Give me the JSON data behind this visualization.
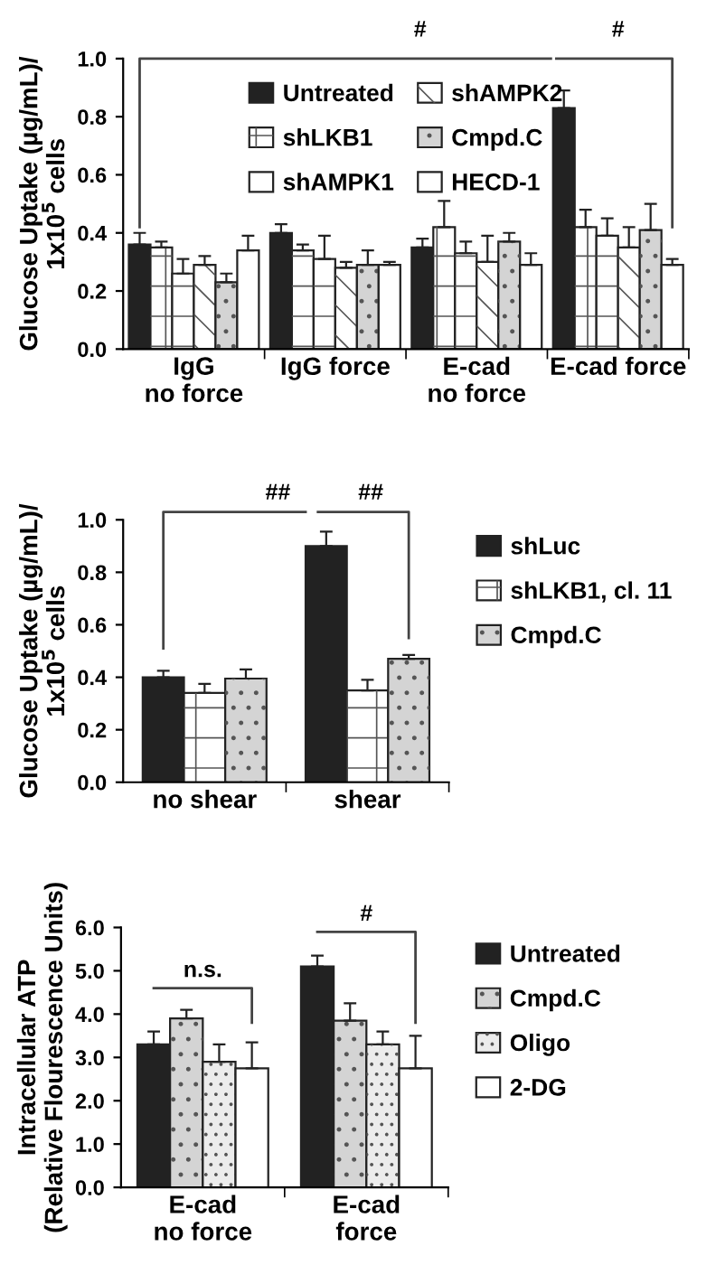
{
  "chart_data": [
    {
      "type": "bar",
      "ylabel": "Glucose Uptake (µg/mL)/\n1x10$^{5}$ cells",
      "categories": [
        "IgG\nno force",
        "IgG force",
        "E-cad\nno force",
        "E-cad force"
      ],
      "ylim": [
        0,
        1
      ],
      "yticks": [
        {
          "value": 0,
          "label": "0.0"
        },
        0.2,
        0.4,
        0.6,
        0.8,
        {
          "value": 1,
          "label": "1.0"
        }
      ],
      "legend": "top",
      "annotations": [
        "#",
        "#"
      ],
      "series": [
        {
          "name": "Untreated",
          "color": "#222222",
          "values": [
            0.36,
            0.4,
            0.35,
            0.83
          ],
          "errors": [
            [
              0.36,
              0.4
            ],
            [
              0.4,
              0.43
            ],
            [
              0.35,
              0.38
            ],
            [
              0.83,
              0.89
            ]
          ]
        },
        {
          "name": "shLKB1",
          "color": "#ffffff",
          "values": [
            0.35,
            0.34,
            0.42,
            0.42
          ],
          "errors": [
            [
              0.35,
              0.37
            ],
            [
              0.34,
              0.36
            ],
            [
              0.42,
              0.51
            ],
            [
              0.42,
              0.48
            ]
          ]
        },
        {
          "name": "shAMPK1",
          "color": "#ffffff",
          "values": [
            0.26,
            0.31,
            0.33,
            0.39
          ],
          "errors": [
            [
              0.26,
              0.31
            ],
            [
              0.31,
              0.39
            ],
            [
              0.33,
              0.37
            ],
            [
              0.39,
              0.45
            ]
          ]
        },
        {
          "name": "shAMPK2",
          "color": "#ffffff",
          "values": [
            0.29,
            0.28,
            0.3,
            0.35
          ],
          "errors": [
            [
              0.29,
              0.32
            ],
            [
              0.28,
              0.3
            ],
            [
              0.3,
              0.39
            ],
            [
              0.35,
              0.42
            ]
          ]
        },
        {
          "name": "Cmpd.C",
          "color": "#d4d4d4",
          "values": [
            0.23,
            0.29,
            0.37,
            0.41
          ],
          "errors": [
            [
              0.23,
              0.26
            ],
            [
              0.29,
              0.34
            ],
            [
              0.37,
              0.4
            ],
            [
              0.41,
              0.5
            ]
          ]
        },
        {
          "name": "HECD-1",
          "color": "#ffffff",
          "values": [
            0.34,
            0.29,
            0.29,
            0.29
          ],
          "errors": [
            [
              0.34,
              0.39
            ],
            [
              0.29,
              0.3
            ],
            [
              0.29,
              0.33
            ],
            [
              0.29,
              0.31
            ]
          ]
        }
      ]
    },
    {
      "type": "bar",
      "ylabel": "Glucose Uptake (µg/mL)/\n1x10$^{5}$ cells",
      "categories": [
        "no shear",
        "shear"
      ],
      "ylim": [
        0,
        1
      ],
      "yticks": [
        {
          "value": 0,
          "label": "0.0"
        },
        0.2,
        0.4,
        0.6,
        0.8,
        {
          "value": 1,
          "label": "1.0"
        }
      ],
      "legend": "right",
      "annotations": [
        "##",
        "##"
      ],
      "series": [
        {
          "name": "shLuc",
          "color": "#222222",
          "values": [
            0.4,
            0.9
          ],
          "errors": [
            [
              0.4,
              0.425
            ],
            [
              0.9,
              0.955
            ]
          ]
        },
        {
          "name": "shLKB1, cl. 11",
          "color": "#ffffff",
          "values": [
            0.34,
            0.35
          ],
          "errors": [
            [
              0.34,
              0.375
            ],
            [
              0.35,
              0.39
            ]
          ]
        },
        {
          "name": "Cmpd.C",
          "color": "#d4d4d4",
          "values": [
            0.395,
            0.47
          ],
          "errors": [
            [
              0.395,
              0.43
            ],
            [
              0.47,
              0.485
            ]
          ]
        }
      ]
    },
    {
      "type": "bar",
      "ylabel": "Intracellular ATP\n(Relative Flourescence Units)",
      "categories": [
        "E-cad\nno force",
        "E-cad\nforce"
      ],
      "ylim": [
        0,
        6
      ],
      "yticks": [
        {
          "value": 0,
          "label": "0.0"
        },
        {
          "value": 1,
          "label": "1.0"
        },
        {
          "value": 2,
          "label": "2.0"
        },
        {
          "value": 3,
          "label": "3.0"
        },
        {
          "value": 4,
          "label": "4.0"
        },
        {
          "value": 5,
          "label": "5.0"
        },
        {
          "value": 6,
          "label": "6.0"
        }
      ],
      "legend": "right",
      "annotations": [
        "n.s.",
        "#"
      ],
      "series": [
        {
          "name": "Untreated",
          "color": "#222222",
          "values": [
            3.3,
            5.1
          ],
          "errors": [
            [
              3.3,
              3.6
            ],
            [
              5.1,
              5.35
            ]
          ]
        },
        {
          "name": "Cmpd.C",
          "color": "#d4d4d4",
          "values": [
            3.9,
            3.85
          ],
          "errors": [
            [
              3.9,
              4.1
            ],
            [
              3.85,
              4.25
            ]
          ]
        },
        {
          "name": "Oligo",
          "color": "#ececec",
          "values": [
            2.9,
            3.3
          ],
          "errors": [
            [
              2.9,
              3.3
            ],
            [
              3.3,
              3.6
            ]
          ]
        },
        {
          "name": "2-DG",
          "color": "#ffffff",
          "values": [
            2.75,
            2.75
          ],
          "errors": [
            [
              2.75,
              3.35
            ],
            [
              2.75,
              3.5
            ]
          ]
        }
      ]
    }
  ]
}
